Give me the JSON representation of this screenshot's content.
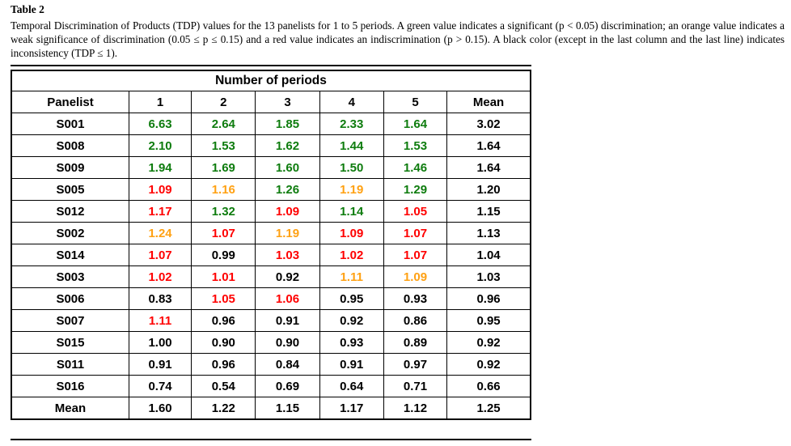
{
  "caption": {
    "label": "Table 2",
    "text": "Temporal Discrimination of Products (TDP) values for the 13 panelists for 1 to 5 periods. A green value indicates a significant (p < 0.05) discrimination; an orange value indicates a weak significance of discrimination (0.05 ≤ p ≤ 0.15) and a red value indicates an indiscrimination (p > 0.15). A black color (except in the last column and the last line) indicates inconsistency (TDP ≤ 1)."
  },
  "table": {
    "group_header": "Number of periods",
    "columns": [
      "Panelist",
      "1",
      "2",
      "3",
      "4",
      "5",
      "Mean"
    ],
    "rows": [
      {
        "panelist": "S001",
        "values": [
          "6.63",
          "2.64",
          "1.85",
          "2.33",
          "1.64"
        ],
        "colors": [
          "green",
          "green",
          "green",
          "green",
          "green"
        ],
        "mean": "3.02"
      },
      {
        "panelist": "S008",
        "values": [
          "2.10",
          "1.53",
          "1.62",
          "1.44",
          "1.53"
        ],
        "colors": [
          "green",
          "green",
          "green",
          "green",
          "green"
        ],
        "mean": "1.64"
      },
      {
        "panelist": "S009",
        "values": [
          "1.94",
          "1.69",
          "1.60",
          "1.50",
          "1.46"
        ],
        "colors": [
          "green",
          "green",
          "green",
          "green",
          "green"
        ],
        "mean": "1.64"
      },
      {
        "panelist": "S005",
        "values": [
          "1.09",
          "1.16",
          "1.26",
          "1.19",
          "1.29"
        ],
        "colors": [
          "red",
          "orange",
          "green",
          "orange",
          "green"
        ],
        "mean": "1.20"
      },
      {
        "panelist": "S012",
        "values": [
          "1.17",
          "1.32",
          "1.09",
          "1.14",
          "1.05"
        ],
        "colors": [
          "red",
          "green",
          "red",
          "green",
          "red"
        ],
        "mean": "1.15"
      },
      {
        "panelist": "S002",
        "values": [
          "1.24",
          "1.07",
          "1.19",
          "1.09",
          "1.07"
        ],
        "colors": [
          "orange",
          "red",
          "orange",
          "red",
          "red"
        ],
        "mean": "1.13"
      },
      {
        "panelist": "S014",
        "values": [
          "1.07",
          "0.99",
          "1.03",
          "1.02",
          "1.07"
        ],
        "colors": [
          "red",
          "black",
          "red",
          "red",
          "red"
        ],
        "mean": "1.04"
      },
      {
        "panelist": "S003",
        "values": [
          "1.02",
          "1.01",
          "0.92",
          "1.11",
          "1.09"
        ],
        "colors": [
          "red",
          "red",
          "black",
          "orange",
          "orange"
        ],
        "mean": "1.03"
      },
      {
        "panelist": "S006",
        "values": [
          "0.83",
          "1.05",
          "1.06",
          "0.95",
          "0.93"
        ],
        "colors": [
          "black",
          "red",
          "red",
          "black",
          "black"
        ],
        "mean": "0.96"
      },
      {
        "panelist": "S007",
        "values": [
          "1.11",
          "0.96",
          "0.91",
          "0.92",
          "0.86"
        ],
        "colors": [
          "red",
          "black",
          "black",
          "black",
          "black"
        ],
        "mean": "0.95"
      },
      {
        "panelist": "S015",
        "values": [
          "1.00",
          "0.90",
          "0.90",
          "0.93",
          "0.89"
        ],
        "colors": [
          "black",
          "black",
          "black",
          "black",
          "black"
        ],
        "mean": "0.92"
      },
      {
        "panelist": "S011",
        "values": [
          "0.91",
          "0.96",
          "0.84",
          "0.91",
          "0.97"
        ],
        "colors": [
          "black",
          "black",
          "black",
          "black",
          "black"
        ],
        "mean": "0.92"
      },
      {
        "panelist": "S016",
        "values": [
          "0.74",
          "0.54",
          "0.69",
          "0.64",
          "0.71"
        ],
        "colors": [
          "black",
          "black",
          "black",
          "black",
          "black"
        ],
        "mean": "0.66"
      }
    ],
    "footer": {
      "label": "Mean",
      "values": [
        "1.60",
        "1.22",
        "1.15",
        "1.17",
        "1.12"
      ],
      "mean": "1.25"
    }
  },
  "colors": {
    "green": "#0E7C0E",
    "orange": "#FFA113",
    "red": "#FF0000",
    "black": "#000000"
  }
}
